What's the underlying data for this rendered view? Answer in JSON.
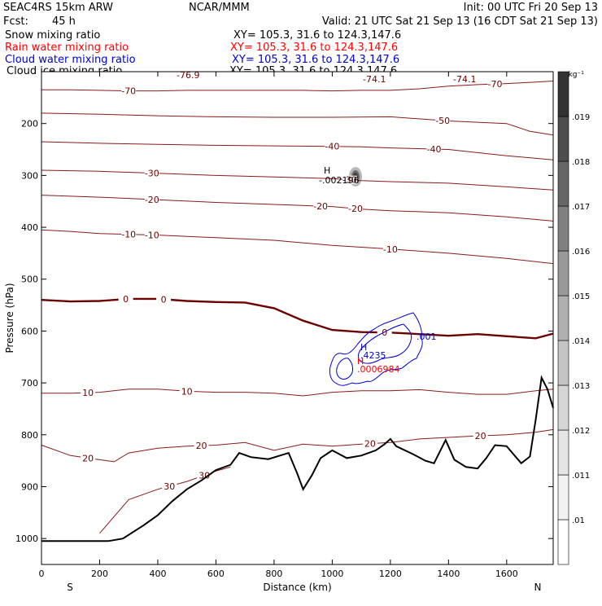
{
  "header": {
    "model": "SEAC4RS 15km ARW",
    "center": "NCAR/MMM",
    "init": "Init: 00 UTC Fri 20 Sep 13",
    "fcst_label": "Fcst:",
    "fcst_value": "45 h",
    "valid": "Valid: 21 UTC Sat 21 Sep 13 (16 CDT Sat 21 Sep 13)"
  },
  "fields": [
    {
      "name": "Snow mixing ratio",
      "xy": "XY= 105.3, 31.6 to 124.3,147.6",
      "color": "#000000"
    },
    {
      "name": "Rain water mixing ratio",
      "xy": "XY= 105.3, 31.6 to 124.3,147.6",
      "color": "#ff0000"
    },
    {
      "name": "Cloud water mixing ratio",
      "xy": "XY= 105.3, 31.6 to 124.3,147.6",
      "color": "#0000cc"
    },
    {
      "name": "Cloud ice mixing ratio",
      "xy": "XY= 105.3, 31.6 to 124.3,147.6",
      "color": "#000000"
    }
  ],
  "colorbar": {
    "unit": "g kg⁻¹",
    "labels": [
      ".01",
      ".011",
      ".012",
      ".013",
      ".014",
      ".015",
      ".016",
      ".017",
      ".018",
      ".019"
    ],
    "colors": [
      "#ffffff",
      "#f2f2f2",
      "#e5e5e5",
      "#d6d6d6",
      "#c4c4c4",
      "#b0b0b0",
      "#999999",
      "#808080",
      "#666666",
      "#4d4d4d",
      "#333333"
    ]
  },
  "annotations": {
    "high_snow": "H",
    "snow_value": "-.002196",
    "high_cloud": "H",
    "cloud_value": ".4235",
    "high_rain": "H",
    "rain_value": ".0006984",
    "cloud_contour_label": ".001",
    "top_temp_1": "-76.9",
    "top_temp_2": "-74.1",
    "top_temp_3": "-74.1"
  },
  "chart_data": {
    "type": "line",
    "title": "",
    "xlabel": "Distance (km)",
    "ylabel": "Pressure (hPa)",
    "xlim": [
      0,
      1760
    ],
    "ylim": [
      1050,
      100
    ],
    "x_ticks": [
      0,
      200,
      400,
      600,
      800,
      1000,
      1200,
      1400,
      1600
    ],
    "y_ticks": [
      200,
      300,
      400,
      500,
      600,
      700,
      800,
      900,
      1000
    ],
    "x_endpoints": {
      "left": "S",
      "right": "N"
    },
    "series": [
      {
        "name": "",
        "kind": "isotherm",
        "level": -70,
        "x": [
          0,
          100,
          200,
          300,
          400,
          500,
          600,
          700,
          800,
          900,
          1000,
          1100,
          1200,
          1300,
          1400,
          1500,
          1600,
          1700,
          1760
        ],
        "y": [
          135,
          135,
          136,
          137,
          137,
          136,
          136,
          136,
          136,
          136,
          137,
          136,
          136,
          133,
          128,
          125,
          123,
          120,
          118
        ]
      },
      {
        "name": "",
        "kind": "isotherm",
        "level": -50,
        "x": [
          0,
          200,
          400,
          600,
          800,
          1000,
          1200,
          1400,
          1600,
          1680,
          1760
        ],
        "y": [
          180,
          182,
          185,
          187,
          188,
          188,
          187,
          195,
          200,
          215,
          222
        ]
      },
      {
        "name": "",
        "kind": "isotherm",
        "level": -40,
        "x": [
          0,
          200,
          400,
          600,
          800,
          1000,
          1100,
          1200,
          1400,
          1600,
          1760
        ],
        "y": [
          235,
          238,
          240,
          242,
          243,
          244,
          245,
          247,
          250,
          262,
          270
        ]
      },
      {
        "name": "",
        "kind": "isotherm",
        "level": -30,
        "x": [
          0,
          200,
          400,
          600,
          800,
          1000,
          1100,
          1200,
          1400,
          1600,
          1760
        ],
        "y": [
          290,
          292,
          296,
          300,
          303,
          306,
          310,
          312,
          315,
          322,
          328
        ]
      },
      {
        "name": "",
        "kind": "isotherm",
        "level": -20,
        "x": [
          0,
          200,
          400,
          600,
          800,
          1000,
          1100,
          1200,
          1400,
          1600,
          1760
        ],
        "y": [
          338,
          342,
          347,
          352,
          356,
          360,
          365,
          368,
          372,
          380,
          388
        ]
      },
      {
        "name": "",
        "kind": "isotherm",
        "level": -10,
        "x": [
          0,
          100,
          200,
          400,
          600,
          800,
          1000,
          1200,
          1400,
          1600,
          1760
        ],
        "y": [
          405,
          408,
          412,
          415,
          420,
          425,
          435,
          442,
          450,
          460,
          470
        ]
      },
      {
        "name": "",
        "kind": "isotherm",
        "level": 0,
        "x": [
          0,
          100,
          200,
          300,
          400,
          500,
          600,
          700,
          800,
          900,
          1000,
          1100,
          1200,
          1300,
          1400,
          1500,
          1600,
          1700,
          1760
        ],
        "y": [
          540,
          543,
          542,
          538,
          538,
          542,
          544,
          545,
          556,
          580,
          598,
          602,
          603,
          606,
          609,
          606,
          610,
          614,
          605
        ]
      },
      {
        "name": "",
        "kind": "isotherm",
        "level": 10,
        "x": [
          0,
          100,
          200,
          300,
          400,
          500,
          600,
          700,
          800,
          900,
          1000,
          1100,
          1200,
          1300,
          1400,
          1500,
          1600,
          1700,
          1760
        ],
        "y": [
          720,
          720,
          718,
          712,
          712,
          716,
          718,
          718,
          720,
          725,
          718,
          715,
          715,
          713,
          718,
          722,
          722,
          715,
          712
        ]
      },
      {
        "name": "",
        "kind": "isotherm",
        "level": 20,
        "x": [
          0,
          100,
          200,
          250,
          300,
          400,
          500,
          600,
          700,
          800,
          900,
          1000,
          1100,
          1200,
          1300,
          1400,
          1500,
          1600,
          1700,
          1760
        ],
        "y": [
          820,
          840,
          848,
          852,
          835,
          826,
          822,
          820,
          815,
          830,
          818,
          822,
          818,
          815,
          808,
          805,
          802,
          800,
          795,
          790
        ]
      },
      {
        "name": "",
        "kind": "isotherm",
        "level": 30,
        "x": [
          200,
          300,
          400,
          500,
          600,
          650
        ],
        "y": [
          990,
          925,
          905,
          890,
          870,
          862
        ]
      },
      {
        "name": "",
        "kind": "terrain",
        "x": [
          0,
          230,
          280,
          350,
          400,
          450,
          500,
          550,
          600,
          650,
          680,
          720,
          780,
          850,
          880,
          900,
          930,
          960,
          1000,
          1050,
          1100,
          1150,
          1180,
          1200,
          1220,
          1280,
          1320,
          1350,
          1390,
          1420,
          1460,
          1500,
          1530,
          1560,
          1600,
          1650,
          1680,
          1700,
          1720,
          1740,
          1760
        ],
        "y": [
          1005,
          1005,
          1000,
          975,
          955,
          928,
          905,
          888,
          868,
          858,
          835,
          843,
          847,
          835,
          875,
          905,
          878,
          845,
          830,
          845,
          840,
          830,
          818,
          808,
          822,
          838,
          850,
          855,
          810,
          848,
          862,
          865,
          845,
          820,
          822,
          855,
          842,
          770,
          690,
          712,
          748
        ]
      }
    ]
  }
}
